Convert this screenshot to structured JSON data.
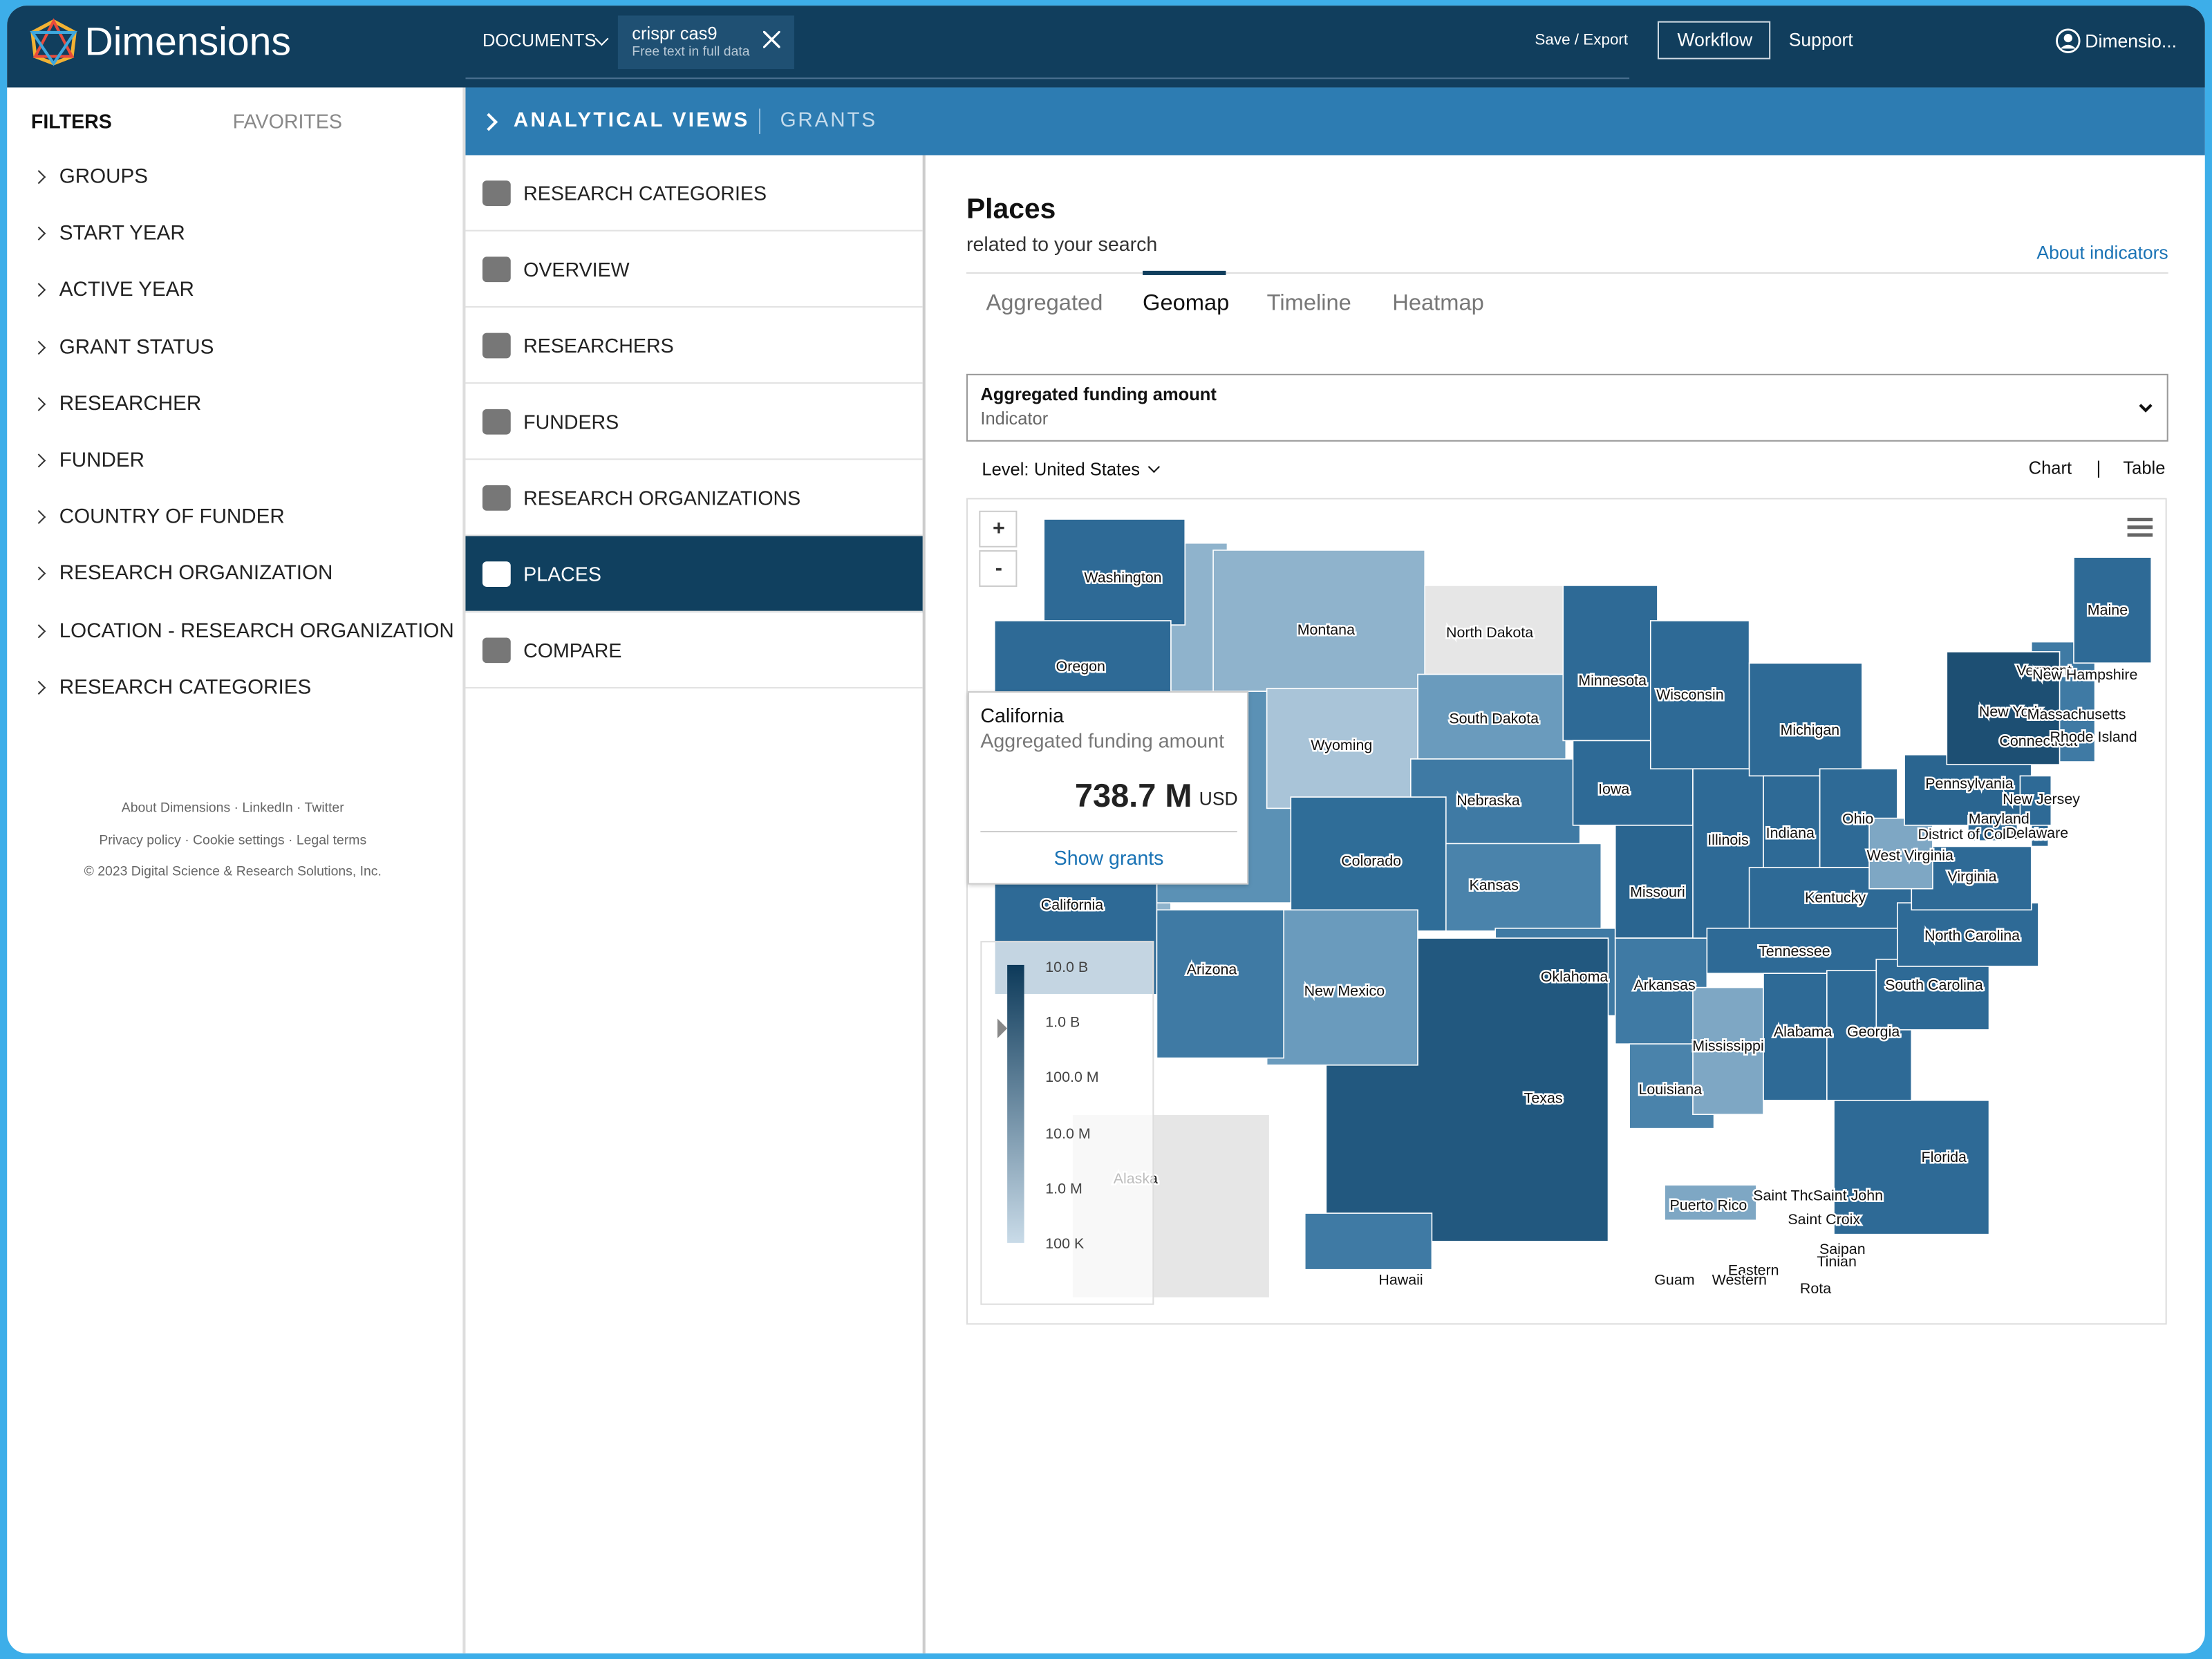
{
  "header": {
    "logo": "Dimensions",
    "documents": "DOCUMENTS",
    "search_term": "crispr cas9",
    "search_hint": "Free text in full data",
    "save": "Save / Export",
    "workflow": "Workflow",
    "support": "Support",
    "user": "Dimensio..."
  },
  "filters": {
    "tabs": [
      "FILTERS",
      "FAVORITES"
    ],
    "items": [
      "GROUPS",
      "START YEAR",
      "ACTIVE YEAR",
      "GRANT STATUS",
      "RESEARCHER",
      "FUNDER",
      "COUNTRY OF FUNDER",
      "RESEARCH ORGANIZATION",
      "LOCATION - RESEARCH ORGANIZATION",
      "RESEARCH CATEGORIES"
    ]
  },
  "footer": {
    "lines": [
      "About Dimensions · LinkedIn · Twitter",
      "Privacy policy · Cookie settings · Legal terms",
      "© 2023 Digital Science & Research Solutions, Inc."
    ]
  },
  "breadcrumb": {
    "title": "ANALYTICAL VIEWS",
    "sub": "GRANTS"
  },
  "views": [
    "RESEARCH CATEGORIES",
    "OVERVIEW",
    "RESEARCHERS",
    "FUNDERS",
    "RESEARCH ORGANIZATIONS",
    "PLACES",
    "COMPARE"
  ],
  "panel": {
    "title": "Places",
    "subtitle": "related to your search",
    "about": "About indicators",
    "tabs": [
      "Aggregated",
      "Geomap",
      "Timeline",
      "Heatmap"
    ],
    "indicator": {
      "label": "Aggregated funding amount",
      "sub": "Indicator"
    },
    "level_label": "Level:",
    "level": "United States",
    "chart": "Chart",
    "separator": "|",
    "table": "Table"
  },
  "map": {
    "zoom_in": "+",
    "zoom_out": "-",
    "regions": [
      "Washington",
      "Oregon",
      "California",
      "Montana",
      "North Dakota",
      "South Dakota",
      "Wyoming",
      "Nebraska",
      "Colorado",
      "Kansas",
      "Oklahoma",
      "Texas",
      "New Mexico",
      "Arizona",
      "Minnesota",
      "Iowa",
      "Missouri",
      "Arkansas",
      "Louisiana",
      "Mississippi",
      "Wisconsin",
      "Illinois",
      "Michigan",
      "Indiana",
      "Ohio",
      "Kentucky",
      "Tennessee",
      "Alabama",
      "Georgia",
      "Florida",
      "South Carolina",
      "North Carolina",
      "Virginia",
      "West Virginia",
      "Pennsylvania",
      "New York",
      "New Jersey",
      "Maryland",
      "District of Columbia",
      "Delaware",
      "Connecticut",
      "Rhode Island",
      "Massachusetts",
      "Vermont",
      "New Hampshire",
      "Maine",
      "Alaska",
      "Hawaii",
      "Puerto Rico",
      "Saint Thomas",
      "Saint John",
      "Saint Croix",
      "Saipan",
      "Tinian",
      "Guam",
      "Eastern",
      "Western",
      "Rota"
    ],
    "legend": [
      "10.0 B",
      "1.0 B",
      "100.0 M",
      "10.0 M",
      "1.0 M",
      "100 K"
    ],
    "tooltip": {
      "region": "California",
      "metric": "Aggregated funding amount",
      "amount": "738.7 M",
      "unit": "USD",
      "action": "Show grants"
    }
  }
}
